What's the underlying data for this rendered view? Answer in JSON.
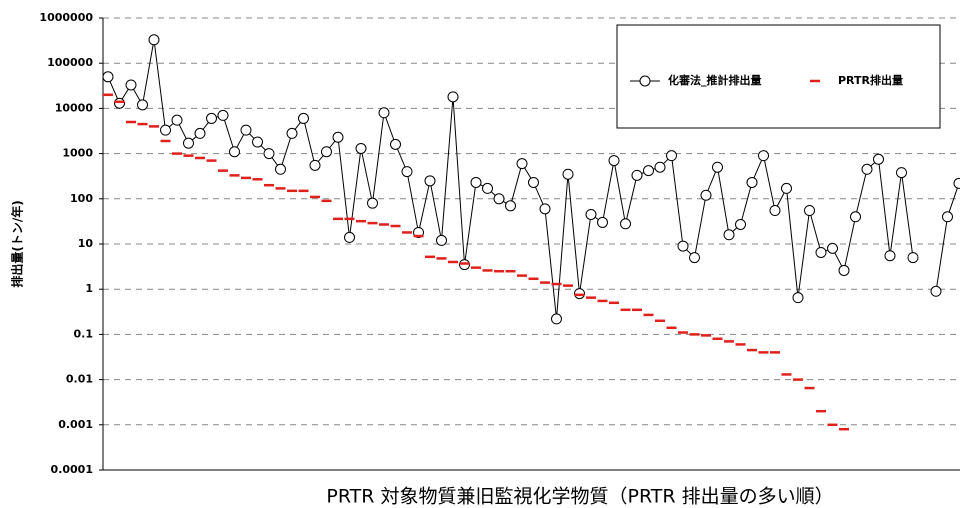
{
  "chart_data": {
    "type": "line",
    "ylabel": "排出量(トン/年)",
    "xlabel": "PRTR 対象物質兼旧監視化学物質（PRTR 排出量の多い順）",
    "yscale": "log",
    "ylim": [
      0.0001,
      1000000
    ],
    "yticks": [
      1000000,
      100000,
      10000,
      1000,
      100,
      10,
      1,
      0.1,
      0.01,
      0.001,
      0.0001
    ],
    "grid": true,
    "legend": "upper right",
    "categories": [
      null,
      null,
      null,
      null,
      null,
      null,
      null,
      null,
      null,
      null,
      null,
      null,
      null,
      null,
      null,
      null,
      null,
      null,
      null,
      null,
      null,
      null,
      null,
      null,
      null,
      null,
      null,
      null,
      null,
      null,
      null,
      null,
      null,
      null,
      null,
      null,
      null,
      null,
      null,
      null,
      null,
      null,
      null,
      null,
      null,
      null,
      null,
      null,
      null,
      null,
      null,
      null,
      null,
      null,
      null,
      null,
      null,
      null,
      null,
      null,
      null,
      null,
      null,
      null,
      null,
      null,
      null,
      null,
      null,
      null,
      null,
      null,
      null,
      null,
      null
    ],
    "series": [
      {
        "name": "化審法_推計排出量",
        "color": "#000000",
        "marker": "circle",
        "values": [
          50000,
          13000,
          33000,
          12000,
          330000,
          3300,
          5500,
          1700,
          2800,
          6000,
          7000,
          1100,
          3300,
          1800,
          1000,
          450,
          2800,
          6000,
          550,
          1100,
          2300,
          14,
          1300,
          80,
          8000,
          1600,
          400,
          18,
          250,
          12,
          18000,
          3.5,
          230,
          170,
          100,
          70,
          600,
          230,
          60,
          0.22,
          350,
          0.8,
          45,
          30,
          700,
          28,
          330,
          420,
          500,
          900,
          9,
          5,
          120,
          500,
          16,
          27,
          230,
          900,
          55,
          170,
          0.65,
          55,
          6.5,
          8,
          2.6,
          40,
          450,
          750,
          5.5,
          380,
          5,
          null,
          0.9,
          40,
          220
        ]
      },
      {
        "name": "PRTR排出量",
        "color": "#e0201b",
        "marker": "dash",
        "values": [
          20000,
          14000,
          5000,
          4500,
          4000,
          1900,
          1000,
          900,
          800,
          700,
          420,
          330,
          290,
          270,
          200,
          170,
          150,
          150,
          110,
          90,
          36,
          36,
          32,
          29,
          27,
          25,
          18,
          15,
          5.2,
          4.8,
          4,
          3.7,
          3,
          2.6,
          2.5,
          2.5,
          2,
          1.7,
          1.4,
          1.3,
          1.2,
          0.75,
          0.65,
          0.55,
          0.5,
          0.35,
          0.35,
          0.27,
          0.2,
          0.14,
          0.11,
          0.1,
          0.095,
          0.08,
          0.07,
          0.06,
          0.045,
          0.04,
          0.04,
          0.013,
          0.01,
          0.0065,
          0.002,
          0.001,
          0.0008,
          null,
          null,
          null,
          null,
          null,
          null,
          null,
          null,
          null,
          null
        ]
      }
    ]
  }
}
